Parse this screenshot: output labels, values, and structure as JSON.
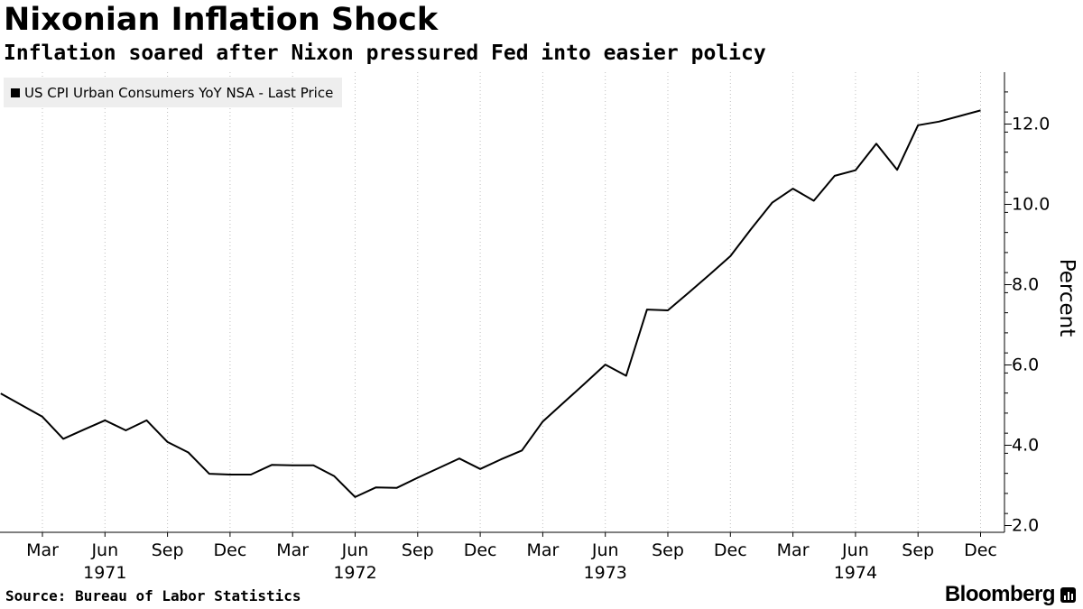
{
  "chart_data": {
    "type": "line",
    "title": "Nixonian Inflation Shock",
    "subtitle": "Inflation soared after Nixon pressured Fed into easier policy",
    "ylabel": "Percent",
    "xlabel": "",
    "ylim": [
      1.8,
      13.2
    ],
    "y_ticks": [
      2.0,
      4.0,
      6.0,
      8.0,
      10.0,
      12.0
    ],
    "y_tick_labels": [
      "2.0",
      "4.0",
      "6.0",
      "8.0",
      "10.0",
      "12.0"
    ],
    "y_axis_side": "right",
    "grid": "vertical dashed at month ticks",
    "legend_position": "top-left",
    "x_month_ticks": [
      {
        "x": "1971-03",
        "label": "Mar"
      },
      {
        "x": "1971-06",
        "label": "Jun"
      },
      {
        "x": "1971-09",
        "label": "Sep"
      },
      {
        "x": "1971-12",
        "label": "Dec"
      },
      {
        "x": "1972-03",
        "label": "Mar"
      },
      {
        "x": "1972-06",
        "label": "Jun"
      },
      {
        "x": "1972-09",
        "label": "Sep"
      },
      {
        "x": "1972-12",
        "label": "Dec"
      },
      {
        "x": "1973-03",
        "label": "Mar"
      },
      {
        "x": "1973-06",
        "label": "Jun"
      },
      {
        "x": "1973-09",
        "label": "Sep"
      },
      {
        "x": "1973-12",
        "label": "Dec"
      },
      {
        "x": "1974-03",
        "label": "Mar"
      },
      {
        "x": "1974-06",
        "label": "Jun"
      },
      {
        "x": "1974-09",
        "label": "Sep"
      },
      {
        "x": "1974-12",
        "label": "Dec"
      }
    ],
    "x_year_labels": [
      {
        "x": "1971-06",
        "label": "1971"
      },
      {
        "x": "1972-06",
        "label": "1972"
      },
      {
        "x": "1973-06",
        "label": "1973"
      },
      {
        "x": "1974-06",
        "label": "1974"
      }
    ],
    "series": [
      {
        "name": "US CPI Urban Consumers YoY NSA - Last Price",
        "color": "#000000",
        "x": [
          "1971-01",
          "1971-02",
          "1971-03",
          "1971-04",
          "1971-05",
          "1971-06",
          "1971-07",
          "1971-08",
          "1971-09",
          "1971-10",
          "1971-11",
          "1971-12",
          "1972-01",
          "1972-02",
          "1972-03",
          "1972-04",
          "1972-05",
          "1972-06",
          "1972-07",
          "1972-08",
          "1972-09",
          "1972-10",
          "1972-11",
          "1972-12",
          "1973-01",
          "1973-02",
          "1973-03",
          "1973-04",
          "1973-05",
          "1973-06",
          "1973-07",
          "1973-08",
          "1973-09",
          "1973-10",
          "1973-11",
          "1973-12",
          "1974-01",
          "1974-02",
          "1974-03",
          "1974-04",
          "1974-05",
          "1974-06",
          "1974-07",
          "1974-08",
          "1974-09",
          "1974-10",
          "1974-11",
          "1974-12"
        ],
        "values": [
          5.29,
          5.0,
          4.71,
          4.16,
          4.39,
          4.62,
          4.37,
          4.62,
          4.08,
          3.82,
          3.29,
          3.27,
          3.27,
          3.51,
          3.5,
          3.5,
          3.23,
          2.71,
          2.95,
          2.94,
          3.19,
          3.43,
          3.67,
          3.41,
          3.65,
          3.87,
          4.59,
          5.06,
          5.53,
          6.01,
          5.73,
          7.38,
          7.36,
          7.8,
          8.25,
          8.71,
          9.39,
          10.04,
          10.39,
          10.09,
          10.71,
          10.85,
          11.51,
          10.86,
          11.97,
          12.06,
          12.2,
          12.34
        ]
      }
    ]
  },
  "source": "Source: Bureau of Labor Statistics",
  "brand": "Bloomberg",
  "brand_icon": "bloomberg-terminal-icon"
}
